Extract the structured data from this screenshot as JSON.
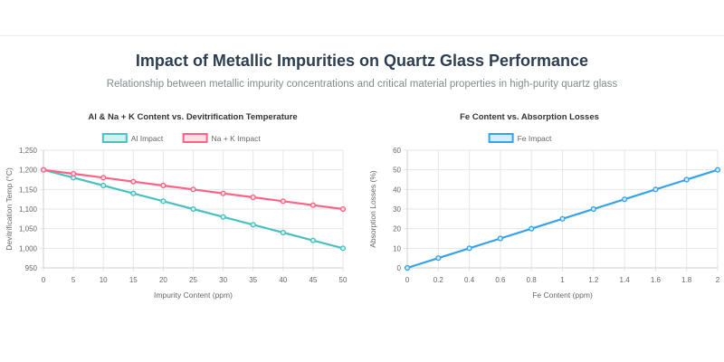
{
  "page": {
    "title": "Impact of Metallic Impurities on Quartz Glass Performance",
    "subtitle": "Relationship between metallic impurity concentrations and critical material properties in high-purity quartz glass"
  },
  "chart_data": [
    {
      "type": "line",
      "title": "Al & Na + K Content vs. Devitrification Temperature",
      "xlabel": "Impurity Content (ppm)",
      "ylabel": "Devitrification Temp (°C)",
      "x": [
        0,
        5,
        10,
        15,
        20,
        25,
        30,
        35,
        40,
        45,
        50
      ],
      "xlim": [
        0,
        50
      ],
      "ylim": [
        950,
        1250
      ],
      "xticks": [
        0,
        5,
        10,
        15,
        20,
        25,
        30,
        35,
        40,
        45,
        50
      ],
      "yticks": [
        950,
        1000,
        1050,
        1100,
        1150,
        1200,
        1250
      ],
      "ytick_labels": [
        "950",
        "1,000",
        "1,050",
        "1,100",
        "1,150",
        "1,200",
        "1,250"
      ],
      "grid": true,
      "legend_position": "top",
      "series": [
        {
          "name": "Al Impact",
          "color": "#4bc0c0",
          "fill": "#d3efef",
          "values": [
            1200,
            1180,
            1160,
            1140,
            1120,
            1100,
            1080,
            1060,
            1040,
            1020,
            1000
          ]
        },
        {
          "name": "Na + K Impact",
          "color": "#ff6384",
          "fill": "#ffe0e6",
          "values": [
            1200,
            1190,
            1180,
            1170,
            1160,
            1150,
            1140,
            1130,
            1120,
            1110,
            1100
          ]
        }
      ]
    },
    {
      "type": "line",
      "title": "Fe Content vs. Absorption Losses",
      "xlabel": "Fe Content (ppm)",
      "ylabel": "Absorption Losses (%)",
      "x": [
        0,
        0.2,
        0.4,
        0.6,
        0.8,
        1,
        1.2,
        1.4,
        1.6,
        1.8,
        2
      ],
      "xlim": [
        0,
        2
      ],
      "ylim": [
        0,
        60
      ],
      "xticks": [
        0,
        0.2,
        0.4,
        0.6,
        0.8,
        1,
        1.2,
        1.4,
        1.6,
        1.8,
        2
      ],
      "yticks": [
        0,
        10,
        20,
        30,
        40,
        50,
        60
      ],
      "ytick_labels": [
        "0",
        "10",
        "20",
        "30",
        "40",
        "50",
        "60"
      ],
      "grid": true,
      "legend_position": "top",
      "series": [
        {
          "name": "Fe Impact",
          "color": "#36a2eb",
          "fill": "#d7ecfb",
          "values": [
            0,
            5,
            10,
            15,
            20,
            25,
            30,
            35,
            40,
            45,
            50
          ]
        }
      ]
    }
  ]
}
